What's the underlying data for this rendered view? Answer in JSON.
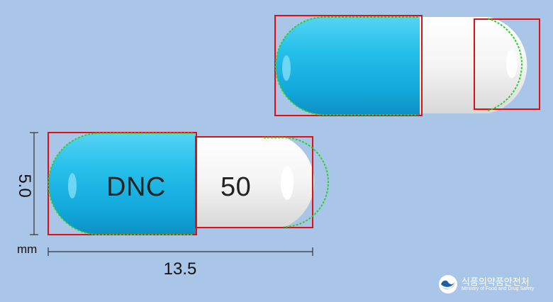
{
  "imprint": {
    "left_cap": "DNC",
    "right_cap": "50"
  },
  "dimensions": {
    "height": "5.0",
    "unit": "mm",
    "width": "13.5"
  },
  "organization": {
    "name_korean": "식품의약품안전처",
    "name_english": "Ministry of Food and Drug Safety"
  },
  "colors": {
    "background": "#a9c6e8",
    "cap_blue": "#1db7e6",
    "body_white": "#efefef",
    "outline_red": "#e01010",
    "edge_green": "#2ccf2c"
  }
}
